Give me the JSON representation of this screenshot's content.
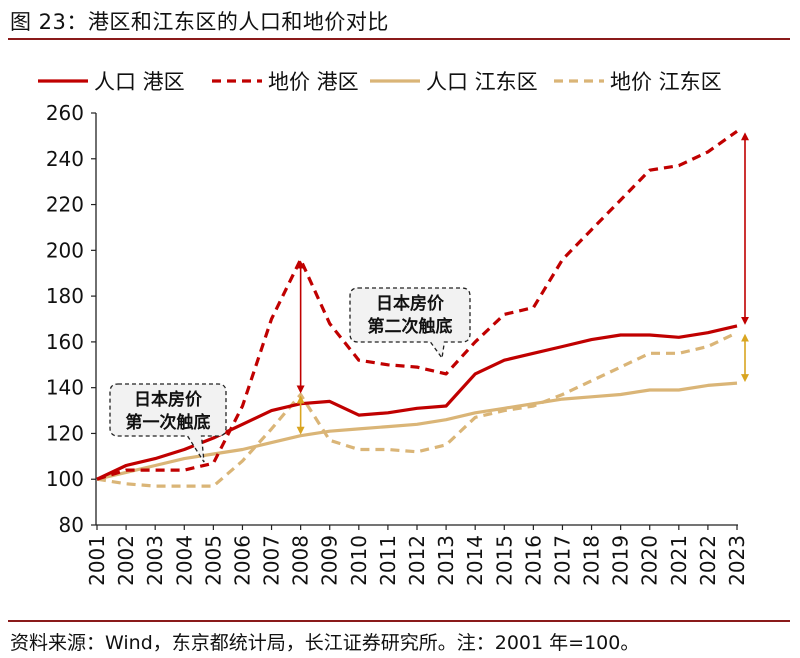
{
  "figure_title": "图 23：港区和江东区的人口和地价对比",
  "source_note": "资料来源：Wind，东京都统计局，长江证券研究所。注：2001 年=100。",
  "colors": {
    "red": "#c00000",
    "tan": "#dab577",
    "arrow_red": "#c00000",
    "arrow_tan": "#d9a520",
    "rule": "#8a1a1a"
  },
  "chart_data": {
    "type": "line",
    "x": [
      "2001",
      "2002",
      "2003",
      "2004",
      "2005",
      "2006",
      "2007",
      "2008",
      "2009",
      "2010",
      "2011",
      "2012",
      "2013",
      "2014",
      "2015",
      "2016",
      "2017",
      "2018",
      "2019",
      "2020",
      "2021",
      "2022",
      "2023"
    ],
    "ylim": [
      80,
      260
    ],
    "yticks": [
      80,
      100,
      120,
      140,
      160,
      180,
      200,
      220,
      240,
      260
    ],
    "grid": false,
    "legend_position": "top",
    "series": [
      {
        "name": "人口 港区",
        "color": "#c00000",
        "dash": "solid",
        "values": [
          100,
          106,
          109,
          113,
          118,
          124,
          130,
          133,
          134,
          128,
          129,
          131,
          132,
          146,
          152,
          155,
          158,
          161,
          163,
          163,
          162,
          164,
          167
        ]
      },
      {
        "name": "地价 港区",
        "color": "#c00000",
        "dash": "dashed",
        "values": [
          100,
          104,
          104,
          104,
          107,
          132,
          170,
          196,
          168,
          152,
          150,
          149,
          146,
          160,
          172,
          175,
          196,
          209,
          222,
          235,
          237,
          243,
          252
        ]
      },
      {
        "name": "人口 江东区",
        "color": "#dab577",
        "dash": "solid",
        "values": [
          100,
          103,
          106,
          109,
          111,
          113,
          116,
          119,
          121,
          122,
          123,
          124,
          126,
          129,
          131,
          133,
          135,
          136,
          137,
          139,
          139,
          141,
          142
        ]
      },
      {
        "name": "地价 江东区",
        "color": "#dab577",
        "dash": "dashed",
        "values": [
          100,
          98,
          97,
          97,
          97,
          108,
          122,
          137,
          117,
          113,
          113,
          112,
          115,
          127,
          130,
          132,
          137,
          143,
          149,
          155,
          155,
          158,
          164
        ]
      }
    ],
    "annotations": [
      {
        "text_lines": [
          "日本房价",
          "第一次触底"
        ],
        "year": "2005"
      },
      {
        "text_lines": [
          "日本房价",
          "第二次触底"
        ],
        "year": "2013"
      }
    ],
    "gap_arrows": [
      {
        "year": "2008",
        "from": 196,
        "to": 137,
        "color": "#c00000"
      },
      {
        "year": "2008",
        "from": 137,
        "to": 119,
        "color": "#d9a520"
      },
      {
        "year": "2023",
        "from": 252,
        "to": 167,
        "color": "#c00000"
      },
      {
        "year": "2023",
        "from": 164,
        "to": 142,
        "color": "#d9a520"
      }
    ]
  }
}
